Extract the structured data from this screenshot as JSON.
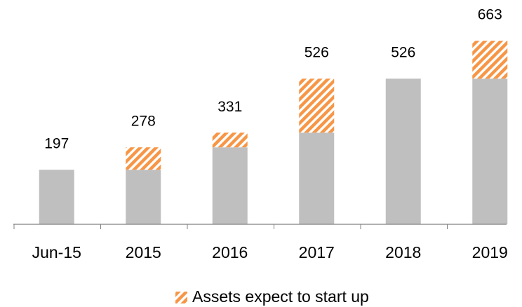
{
  "chart_data": {
    "type": "bar",
    "stacked": true,
    "categories": [
      "Jun-15",
      "2015",
      "2016",
      "2017",
      "2018",
      "2019"
    ],
    "series": [
      {
        "color": "#bfbfbf",
        "values": [
          197,
          197,
          278,
          331,
          526,
          526
        ]
      },
      {
        "name": "Assets expect to start up",
        "color": "#f79646",
        "hatch": true,
        "values": [
          0,
          81,
          53,
          195,
          0,
          137
        ]
      }
    ],
    "totals": [
      197,
      278,
      331,
      526,
      526,
      663
    ],
    "ylim": [
      0,
      810
    ]
  }
}
